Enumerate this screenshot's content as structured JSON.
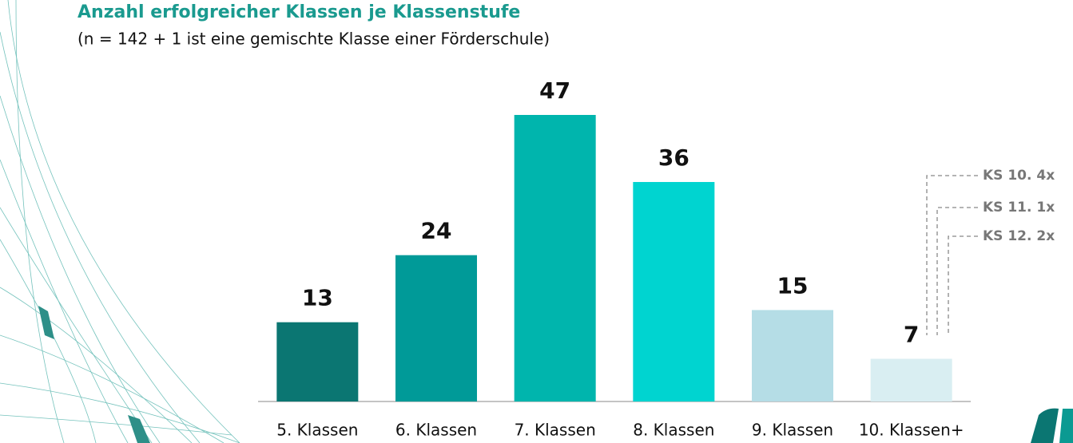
{
  "chart_data": {
    "type": "bar",
    "title": "Anzahl erfolgreicher Klassen je Klassenstufe",
    "subtitle": "(n = 142 + 1 ist eine gemischte Klasse einer Förderschule)",
    "categories": [
      "5. Klassen",
      "6. Klassen",
      "7. Klassen",
      "8. Klassen",
      "9. Klassen",
      "10. Klassen+"
    ],
    "values": [
      13,
      24,
      47,
      36,
      15,
      7
    ],
    "colors": [
      "#0b7672",
      "#009a98",
      "#00b5ad",
      "#00d4d0",
      "#b5dde6",
      "#d9eef2"
    ],
    "annotations": [
      "KS 10. 4x",
      "KS 11. 1x",
      "KS 12. 2x"
    ]
  }
}
